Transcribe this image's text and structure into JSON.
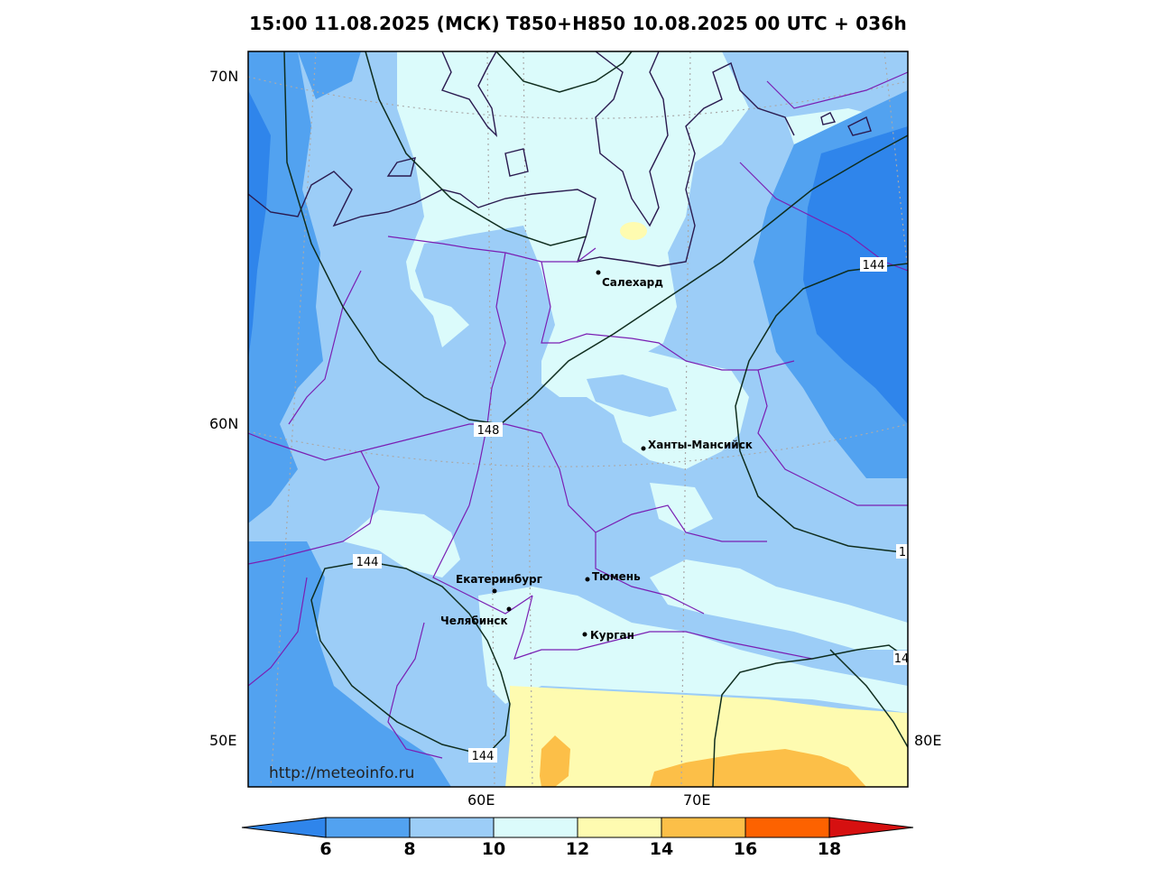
{
  "title": "15:00 11.08.2025 (МСК) T850+H850 10.08.2025 00 UTC + 036h",
  "watermark": "http://meteoinfo.ru",
  "lat_labels": [
    "70N",
    "60N",
    "50E"
  ],
  "lon_labels": [
    "60E",
    "70E",
    "80E"
  ],
  "cities": [
    {
      "name": "Салехард"
    },
    {
      "name": "Ханты-Мансийск"
    },
    {
      "name": "Екатеринбург"
    },
    {
      "name": "Тюмень"
    },
    {
      "name": "Челябинск"
    },
    {
      "name": "Курган"
    }
  ],
  "isohypse_labels": [
    "144",
    "148",
    "144",
    "144",
    "1",
    "14"
  ],
  "colorbar": {
    "ticks": [
      "6",
      "8",
      "10",
      "12",
      "14",
      "16",
      "18"
    ],
    "colors": [
      "#2f85eb",
      "#52a2f0",
      "#9ccdf7",
      "#dbfbfb",
      "#fefbb0",
      "#fcbf48",
      "#fd6200",
      "#d61010"
    ]
  },
  "colors": {
    "t6": "#2f85eb",
    "t8": "#52a2f0",
    "t10": "#9ccdf7",
    "t12": "#dbfbfb",
    "t14": "#fefbb0",
    "t16": "#fcbf48",
    "border": "#7a1fb3",
    "coast": "#2a1a4f",
    "contour": "#0f2d1e"
  }
}
